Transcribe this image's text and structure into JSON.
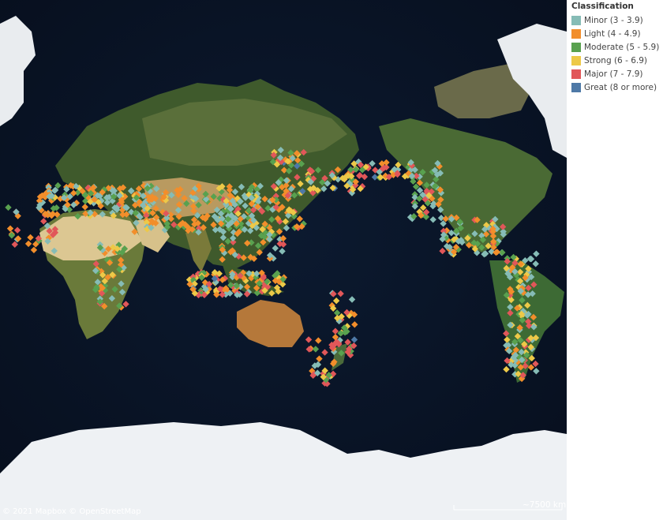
{
  "legend": {
    "title": "Classification",
    "items": [
      {
        "label": "Minor (3 - 3.9)",
        "color": "#86bcb6"
      },
      {
        "label": "Light (4 - 4.9)",
        "color": "#f28e2b"
      },
      {
        "label": "Moderate (5 - 5.9)",
        "color": "#59a14f"
      },
      {
        "label": "Strong (6 - 6.9)",
        "color": "#edc948"
      },
      {
        "label": "Major (7 - 7.9)",
        "color": "#e15759"
      },
      {
        "label": "Great (8 or more)",
        "color": "#4e79a7"
      }
    ]
  },
  "attribution": "© 2021 Mapbox © OpenStreetMap",
  "scale": "~7500 km",
  "colors": {
    "ocean": "#0a1426",
    "ice": "#eef1f4",
    "land_green": "#3d5a2a",
    "desert": "#d9c690",
    "land_brown": "#8a6a3a"
  }
}
